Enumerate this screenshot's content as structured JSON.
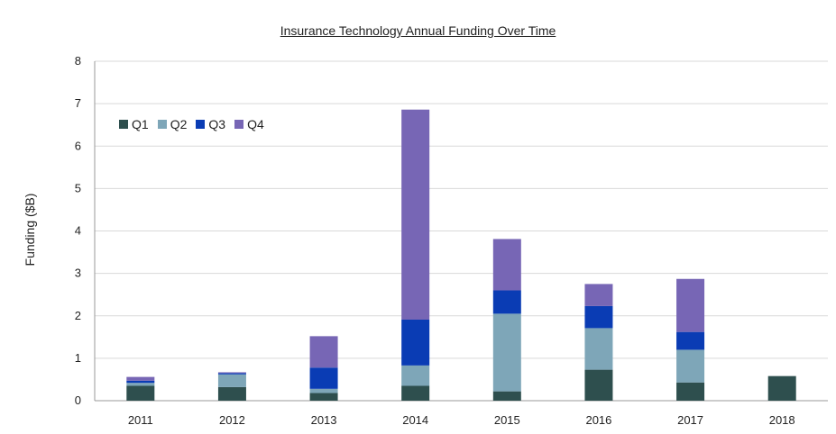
{
  "chart_data": {
    "type": "bar",
    "stacked": true,
    "title": "Insurance Technology Annual Funding Over Time",
    "xlabel": "",
    "ylabel": "Funding ($B)",
    "ylim": [
      0,
      8
    ],
    "yticks": [
      0,
      1,
      2,
      3,
      4,
      5,
      6,
      7,
      8
    ],
    "grid": true,
    "legend_position": "top-left",
    "categories": [
      "2011",
      "2012",
      "2013",
      "2014",
      "2015",
      "2016",
      "2017",
      "2018"
    ],
    "series": [
      {
        "name": "Q1",
        "color": "#2e4f4e",
        "values": [
          0.35,
          0.32,
          0.18,
          0.35,
          0.22,
          0.73,
          0.43,
          0.58
        ]
      },
      {
        "name": "Q2",
        "color": "#7ea6b8",
        "values": [
          0.07,
          0.3,
          0.1,
          0.48,
          1.83,
          0.98,
          0.77,
          0
        ]
      },
      {
        "name": "Q3",
        "color": "#0a3cb4",
        "values": [
          0.05,
          0.03,
          0.5,
          1.08,
          0.55,
          0.52,
          0.42,
          0
        ]
      },
      {
        "name": "Q4",
        "color": "#7766b5",
        "values": [
          0.09,
          0.02,
          0.74,
          4.95,
          1.21,
          0.52,
          1.25,
          0
        ]
      }
    ]
  }
}
